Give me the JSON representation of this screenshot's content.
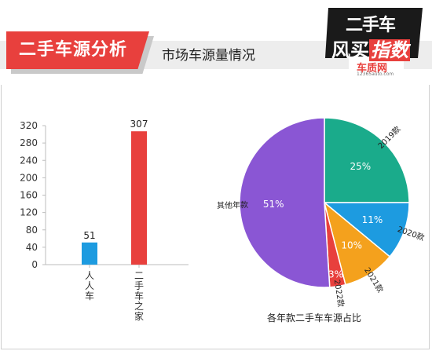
{
  "header": {
    "title": "二手车源分析",
    "subtitle": "市场车源量情况",
    "badge_line1": "二手车",
    "badge_line2_a": "风",
    "badge_line2_b": "买",
    "badge_line2_c": "指数",
    "badge_logo": "车质网",
    "badge_site": "12365auto.com"
  },
  "colors": {
    "accent": "#e8403d",
    "bar_blue": "#1d9be0",
    "bar_red": "#e8403d",
    "pie_2019": "#1aab8b",
    "pie_2020": "#1d9be0",
    "pie_2021": "#f4a11d",
    "pie_2022": "#e8403d",
    "pie_other": "#8a56d4"
  },
  "chart_data": [
    {
      "type": "bar",
      "categories": [
        "人人车",
        "二手车之家"
      ],
      "values": [
        51,
        307
      ],
      "ylim": [
        0,
        320
      ],
      "yticks": [
        0,
        40,
        80,
        120,
        160,
        200,
        240,
        280,
        320
      ],
      "grid": false
    },
    {
      "type": "pie",
      "title": "各年款二手车车源占比",
      "slices": [
        {
          "label": "2019款",
          "value": 25,
          "value_label": "25%"
        },
        {
          "label": "2020款",
          "value": 11,
          "value_label": "11%"
        },
        {
          "label": "2021款",
          "value": 10,
          "value_label": "10%"
        },
        {
          "label": "2022款",
          "value": 3,
          "value_label": "3%"
        },
        {
          "label": "其他年款",
          "value": 51,
          "value_label": "51%"
        }
      ]
    }
  ]
}
